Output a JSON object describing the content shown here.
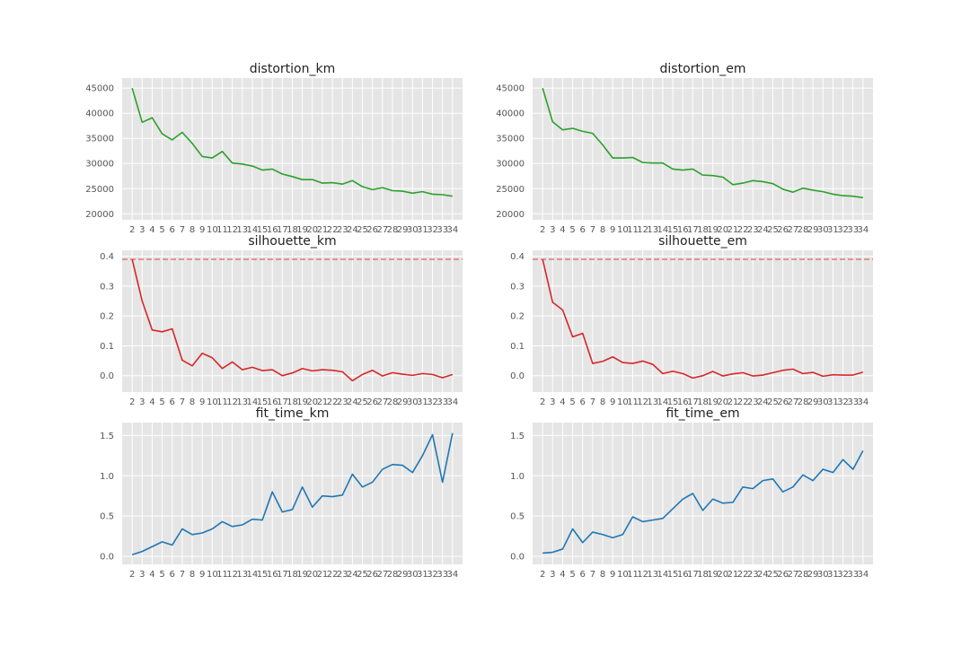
{
  "chart_data": [
    {
      "type": "line",
      "title": "distortion_km",
      "x": [
        2,
        3,
        4,
        5,
        6,
        7,
        8,
        9,
        10,
        11,
        12,
        13,
        14,
        15,
        16,
        17,
        18,
        19,
        20,
        21,
        22,
        23,
        24,
        25,
        26,
        27,
        28,
        29,
        30,
        31,
        32,
        33,
        34
      ],
      "series": [
        {
          "values": [
            45000,
            38200,
            39100,
            35900,
            34700,
            36200,
            34000,
            31400,
            31100,
            32400,
            30100,
            29900,
            29500,
            28700,
            28900,
            27900,
            27400,
            26800,
            26800,
            26100,
            26200,
            25900,
            26600,
            25400,
            24800,
            25200,
            24600,
            24500,
            24100,
            24400,
            23900,
            23800,
            23500
          ],
          "color": "#2ca02c"
        }
      ],
      "yticks": [
        20000,
        25000,
        30000,
        35000,
        40000,
        45000
      ],
      "ylim": [
        18800,
        47000
      ],
      "xlim": [
        1,
        35
      ]
    },
    {
      "type": "line",
      "title": "distortion_em",
      "x": [
        2,
        3,
        4,
        5,
        6,
        7,
        8,
        9,
        10,
        11,
        12,
        13,
        14,
        15,
        16,
        17,
        18,
        19,
        20,
        21,
        22,
        23,
        24,
        25,
        26,
        27,
        28,
        29,
        30,
        31,
        32,
        33,
        34
      ],
      "series": [
        {
          "values": [
            45000,
            38300,
            36700,
            37000,
            36400,
            36000,
            33700,
            31100,
            31100,
            31200,
            30200,
            30100,
            30100,
            28900,
            28700,
            28900,
            27700,
            27600,
            27300,
            25800,
            26100,
            26600,
            26400,
            26000,
            24900,
            24300,
            25100,
            24700,
            24400,
            23900,
            23600,
            23500,
            23200
          ],
          "color": "#2ca02c"
        }
      ],
      "yticks": [
        20000,
        25000,
        30000,
        35000,
        40000,
        45000
      ],
      "ylim": [
        18800,
        47000
      ],
      "xlim": [
        1,
        35
      ]
    },
    {
      "type": "line",
      "title": "silhouette_km",
      "x": [
        2,
        3,
        4,
        5,
        6,
        7,
        8,
        9,
        10,
        11,
        12,
        13,
        14,
        15,
        16,
        17,
        18,
        19,
        20,
        21,
        22,
        23,
        24,
        25,
        26,
        27,
        28,
        29,
        30,
        31,
        32,
        33,
        34
      ],
      "series": [
        {
          "values": [
            0.39,
            0.25,
            0.153,
            0.147,
            0.157,
            0.052,
            0.033,
            0.075,
            0.06,
            0.024,
            0.046,
            0.02,
            0.028,
            0.017,
            0.02,
            0.0,
            0.009,
            0.024,
            0.016,
            0.02,
            0.018,
            0.013,
            -0.017,
            0.004,
            0.018,
            -0.001,
            0.01,
            0.005,
            0.001,
            0.007,
            0.004,
            -0.007,
            0.004
          ],
          "color": "#d62728"
        }
      ],
      "hline": {
        "value": 0.39,
        "color": "#e06060"
      },
      "yticks": [
        0.0,
        0.1,
        0.2,
        0.3,
        0.4
      ],
      "ylim": [
        -0.055,
        0.42
      ],
      "xlim": [
        1,
        35
      ]
    },
    {
      "type": "line",
      "title": "silhouette_em",
      "x": [
        2,
        3,
        4,
        5,
        6,
        7,
        8,
        9,
        10,
        11,
        12,
        13,
        14,
        15,
        16,
        17,
        18,
        19,
        20,
        21,
        22,
        23,
        24,
        25,
        26,
        27,
        28,
        29,
        30,
        31,
        32,
        33,
        34
      ],
      "series": [
        {
          "values": [
            0.39,
            0.246,
            0.22,
            0.13,
            0.142,
            0.041,
            0.048,
            0.063,
            0.044,
            0.041,
            0.049,
            0.038,
            0.007,
            0.015,
            0.007,
            -0.008,
            0.0,
            0.014,
            -0.001,
            0.006,
            0.01,
            -0.001,
            0.002,
            0.01,
            0.018,
            0.022,
            0.007,
            0.011,
            -0.002,
            0.003,
            0.002,
            0.002,
            0.012
          ],
          "color": "#d62728"
        }
      ],
      "hline": {
        "value": 0.39,
        "color": "#e06060"
      },
      "yticks": [
        0.0,
        0.1,
        0.2,
        0.3,
        0.4
      ],
      "ylim": [
        -0.055,
        0.42
      ],
      "xlim": [
        1,
        35
      ]
    },
    {
      "type": "line",
      "title": "fit_time_km",
      "x": [
        2,
        3,
        4,
        5,
        6,
        7,
        8,
        9,
        10,
        11,
        12,
        13,
        14,
        15,
        16,
        17,
        18,
        19,
        20,
        21,
        22,
        23,
        24,
        25,
        26,
        27,
        28,
        29,
        30,
        31,
        32,
        33,
        34
      ],
      "series": [
        {
          "values": [
            0.02,
            0.06,
            0.12,
            0.18,
            0.14,
            0.34,
            0.27,
            0.29,
            0.34,
            0.43,
            0.37,
            0.39,
            0.46,
            0.45,
            0.8,
            0.55,
            0.58,
            0.86,
            0.61,
            0.75,
            0.74,
            0.76,
            1.02,
            0.86,
            0.92,
            1.08,
            1.14,
            1.13,
            1.04,
            1.25,
            1.51,
            0.92,
            1.53
          ],
          "color": "#1f77b4"
        }
      ],
      "yticks": [
        0.0,
        0.5,
        1.0,
        1.5
      ],
      "ylim": [
        -0.1,
        1.66
      ],
      "xlim": [
        1,
        35
      ]
    },
    {
      "type": "line",
      "title": "fit_time_em",
      "x": [
        2,
        3,
        4,
        5,
        6,
        7,
        8,
        9,
        10,
        11,
        12,
        13,
        14,
        15,
        16,
        17,
        18,
        19,
        20,
        21,
        22,
        23,
        24,
        25,
        26,
        27,
        28,
        29,
        30,
        31,
        32,
        33,
        34
      ],
      "series": [
        {
          "values": [
            0.04,
            0.05,
            0.09,
            0.34,
            0.17,
            0.3,
            0.27,
            0.23,
            0.27,
            0.49,
            0.43,
            0.45,
            0.47,
            0.59,
            0.71,
            0.78,
            0.57,
            0.71,
            0.66,
            0.67,
            0.86,
            0.84,
            0.94,
            0.96,
            0.8,
            0.86,
            1.01,
            0.94,
            1.08,
            1.04,
            1.2,
            1.08,
            1.31
          ],
          "color": "#1f77b4"
        }
      ],
      "yticks": [
        0.0,
        0.5,
        1.0,
        1.5
      ],
      "ylim": [
        -0.1,
        1.66
      ],
      "xlim": [
        1,
        35
      ]
    }
  ]
}
